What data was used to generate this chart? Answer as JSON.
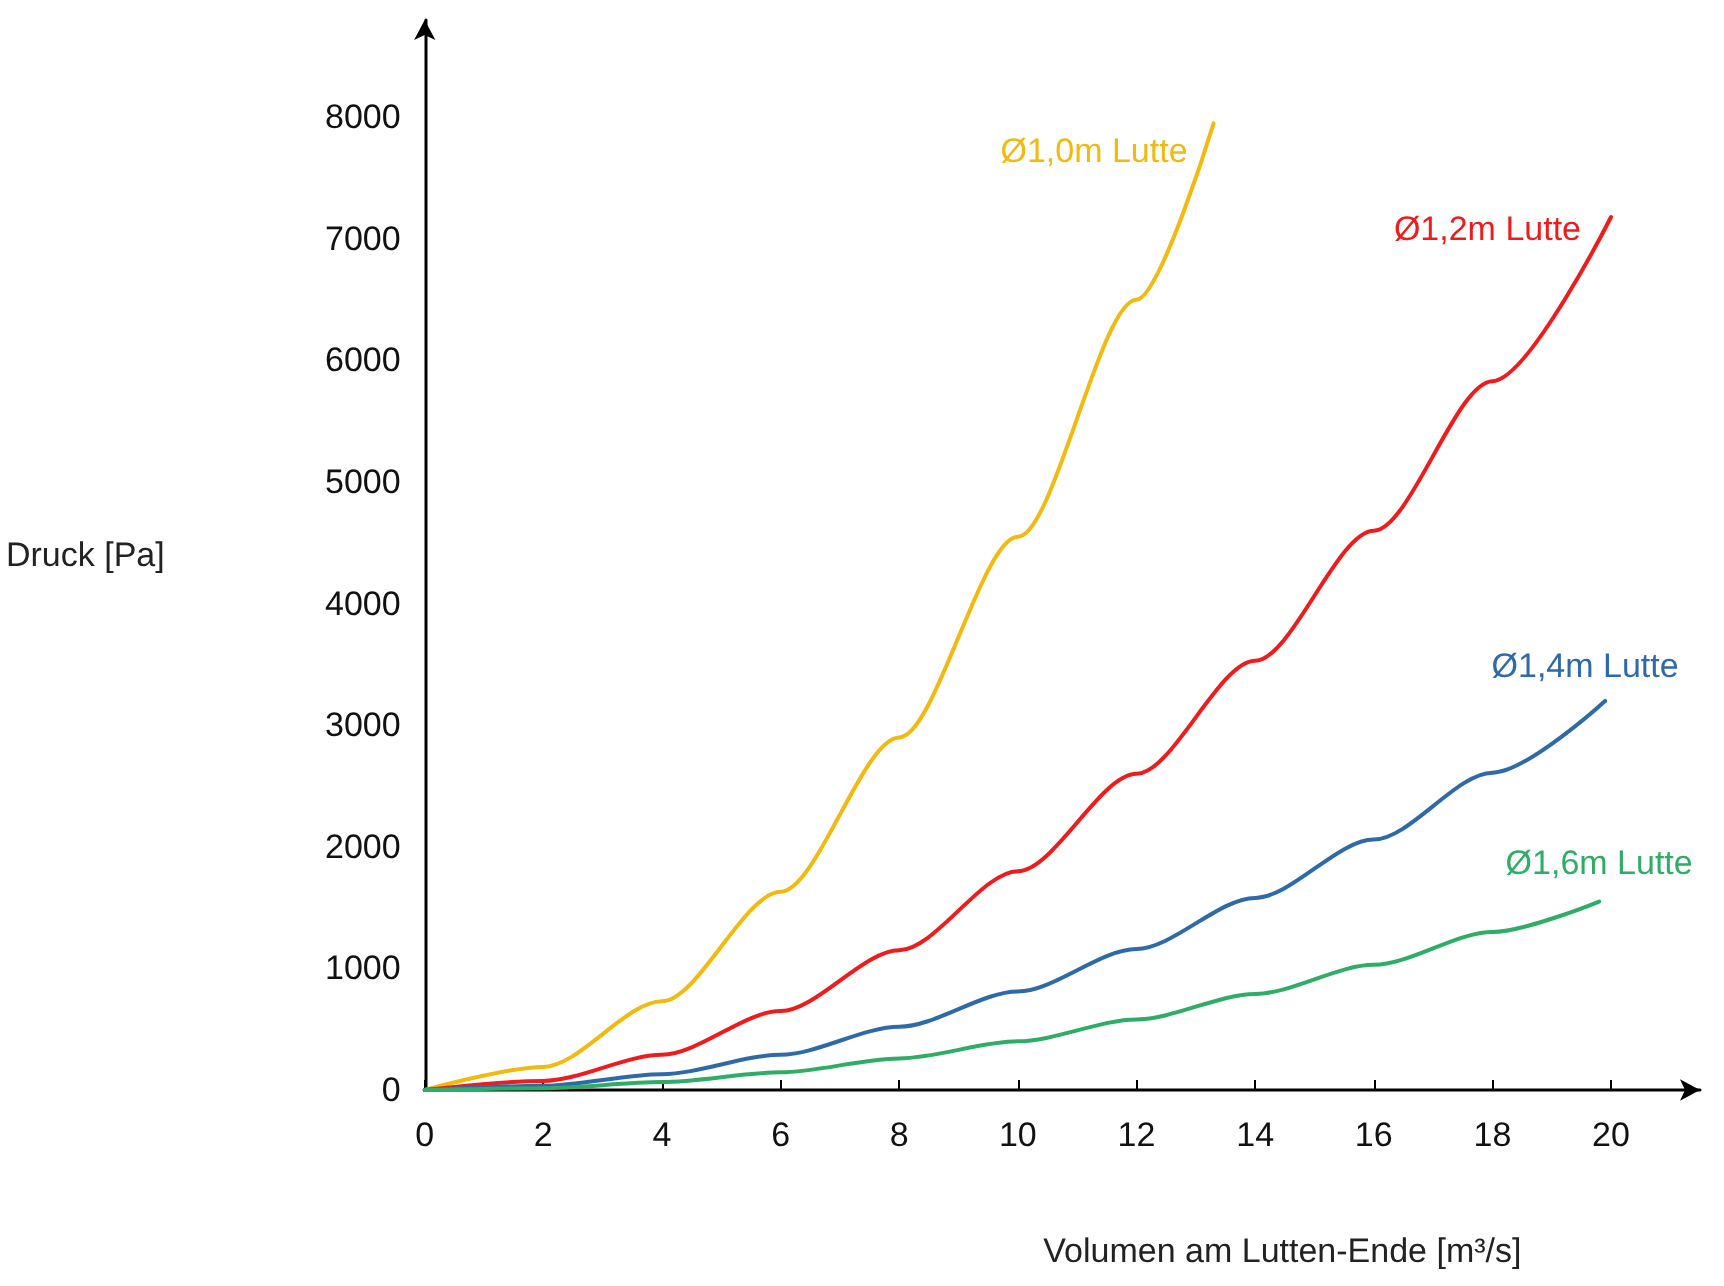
{
  "chart_data": {
    "type": "line",
    "xlabel": "Volumen am Lutten-Ende [m³/s]",
    "ylabel": "Druck [Pa]",
    "xlim": [
      0,
      21.5
    ],
    "xticks": [
      0,
      2,
      4,
      6,
      8,
      10,
      12,
      14,
      16,
      18,
      20
    ],
    "ylim": [
      0,
      8800
    ],
    "yticks": [
      0,
      1000,
      2000,
      3000,
      4000,
      5000,
      6000,
      7000,
      8000
    ],
    "grid": false,
    "legend": false,
    "marker": "none",
    "line_style": "solid",
    "series": [
      {
        "name": "Ø1,0m Lutte",
        "color": "#f2b90f",
        "x": [
          0,
          2,
          4,
          6,
          8,
          10,
          12,
          13.3
        ],
        "values": [
          0,
          190,
          730,
          1630,
          2900,
          4550,
          6500,
          7950
        ]
      },
      {
        "name": "Ø1,2m Lutte",
        "color": "#ee1c1c",
        "x": [
          0,
          2,
          4,
          6,
          8,
          10,
          12,
          14,
          16,
          18,
          20
        ],
        "values": [
          0,
          75,
          290,
          650,
          1150,
          1800,
          2600,
          3530,
          4600,
          5830,
          7180
        ]
      },
      {
        "name": "Ø1,4m Lutte",
        "color": "#2f6aa8",
        "x": [
          0,
          2,
          4,
          6,
          8,
          10,
          12,
          14,
          16,
          18,
          19.9
        ],
        "values": [
          0,
          35,
          130,
          290,
          520,
          810,
          1160,
          1580,
          2060,
          2610,
          3200
        ]
      },
      {
        "name": "Ø1,6m Lutte",
        "color": "#2fac66",
        "x": [
          0,
          2,
          4,
          6,
          8,
          10,
          12,
          14,
          16,
          18,
          19.8
        ],
        "values": [
          0,
          15,
          65,
          145,
          260,
          400,
          580,
          790,
          1030,
          1300,
          1550
        ]
      }
    ]
  }
}
